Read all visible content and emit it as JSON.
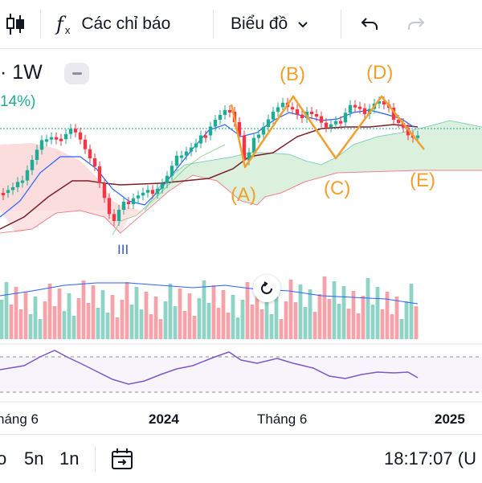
{
  "toolbar": {
    "indicators_label": "Các chỉ báo",
    "chart_type_label": "Biểu đồ",
    "icons": [
      "candlestick-icon",
      "function-icon",
      "chevron-down-icon",
      "undo-icon",
      "redo-icon"
    ]
  },
  "symbol": {
    "interval": "· 1W",
    "change_pct": "14%)"
  },
  "wave_labels": {
    "A": "(A)",
    "B": "(B)",
    "C": "(C)",
    "D": "(D)",
    "E": "(E)",
    "iii": "III"
  },
  "x_axis": {
    "labels": [
      "háng 6",
      "2024",
      "Tháng 6",
      "2025"
    ]
  },
  "bottom_bar": {
    "ranges": [
      "o",
      "5n",
      "1n"
    ],
    "time": "18:17:07 (U"
  },
  "colors": {
    "bull": "#22ab94",
    "bear": "#f23645",
    "wave": "#f0a02e",
    "cloud_bull": "#d7efd9",
    "cloud_bear": "#fbd9d9",
    "kijun": "#7b1f2a",
    "tenkan": "#2962ff",
    "rsi": "#7e57c2"
  }
}
